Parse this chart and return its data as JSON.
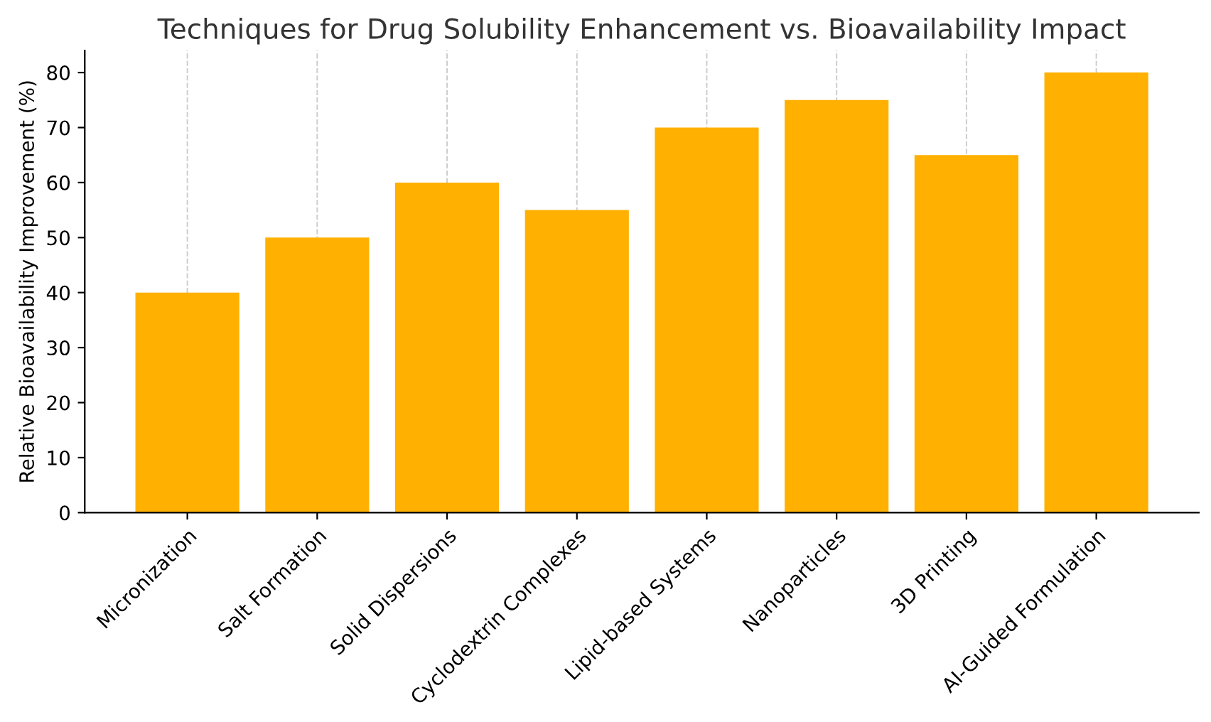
{
  "chart_data": {
    "type": "bar",
    "title": "Techniques for Drug Solubility Enhancement vs. Bioavailability Impact",
    "ylabel": "Relative Bioavailability Improvement (%)",
    "categories": [
      "Micronization",
      "Salt Formation",
      "Solid Dispersions",
      "Cyclodextrin Complexes",
      "Lipid-based Systems",
      "Nanoparticles",
      "3D Printing",
      "AI-Guided Formulation"
    ],
    "values": [
      40,
      50,
      60,
      55,
      70,
      75,
      65,
      80
    ],
    "color": "#ffb000",
    "ylim": [
      0,
      84
    ],
    "yticks": [
      0,
      10,
      20,
      30,
      40,
      50,
      60,
      70,
      80
    ],
    "grid": "x",
    "legend": false
  }
}
